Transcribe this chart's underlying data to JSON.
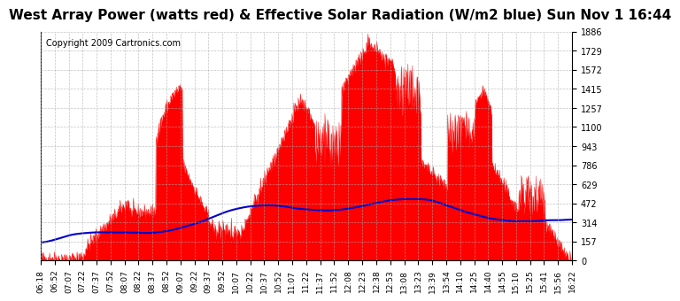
{
  "title": "West Array Power (watts red) & Effective Solar Radiation (W/m2 blue) Sun Nov 1 16:44",
  "copyright": "Copyright 2009 Cartronics.com",
  "y_max": 1886.1,
  "y_min": 0.0,
  "y_ticks": [
    0.0,
    157.2,
    314.4,
    471.5,
    628.7,
    785.9,
    943.1,
    1100.2,
    1257.4,
    1414.6,
    1571.8,
    1729.0,
    1886.1
  ],
  "background_color": "#ffffff",
  "grid_color": "#aaaaaa",
  "red_color": "#ff0000",
  "blue_color": "#0000cc",
  "title_fontsize": 11,
  "copyright_fontsize": 7,
  "x_tick_labels": [
    "06:18",
    "06:52",
    "07:07",
    "07:22",
    "07:37",
    "07:52",
    "08:07",
    "08:22",
    "08:37",
    "08:52",
    "09:07",
    "09:22",
    "09:37",
    "09:52",
    "10:07",
    "10:22",
    "10:37",
    "10:52",
    "11:07",
    "11:22",
    "11:37",
    "11:52",
    "12:08",
    "12:23",
    "12:38",
    "12:53",
    "13:08",
    "13:23",
    "13:39",
    "13:54",
    "14:10",
    "14:25",
    "14:40",
    "14:55",
    "15:10",
    "15:25",
    "15:41",
    "15:56",
    "16:22"
  ]
}
